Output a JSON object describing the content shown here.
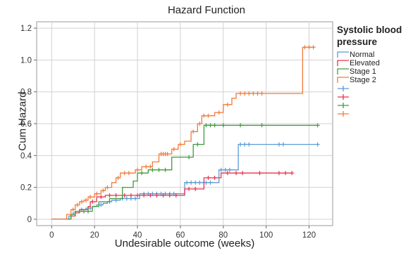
{
  "chart_data": {
    "type": "line",
    "title": "Hazard Function",
    "xlabel": "Undesirable outcome (weeks)",
    "ylabel": "Cum Hazard",
    "xlim": [
      -7,
      131
    ],
    "ylim": [
      -0.04,
      1.24
    ],
    "xticks": [
      0,
      20,
      40,
      60,
      80,
      100,
      120
    ],
    "yticks": [
      0,
      0.2,
      0.4,
      0.6,
      0.8,
      1.0,
      1.2
    ],
    "ytick_labels": [
      "0",
      "0.2",
      "0.4",
      "0.6",
      "0.8",
      "1.0",
      "1.2"
    ],
    "grid": true,
    "legend_title": "Systolic blood pressure",
    "legend_position": "right",
    "series": [
      {
        "name": "Normal",
        "color": "#5b9bd5",
        "step": [
          [
            0,
            0
          ],
          [
            7,
            0
          ],
          [
            8,
            0.02
          ],
          [
            9,
            0.03
          ],
          [
            10,
            0.04
          ],
          [
            11,
            0.05
          ],
          [
            13,
            0.06
          ],
          [
            16,
            0.07
          ],
          [
            19,
            0.08
          ],
          [
            21,
            0.09
          ],
          [
            24,
            0.1
          ],
          [
            26,
            0.11
          ],
          [
            28,
            0.12
          ],
          [
            32,
            0.13
          ],
          [
            41,
            0.16
          ],
          [
            59,
            0.16
          ],
          [
            62,
            0.23
          ],
          [
            76,
            0.23
          ],
          [
            78,
            0.31
          ],
          [
            85,
            0.31
          ],
          [
            87,
            0.47
          ],
          [
            124,
            0.47
          ]
        ],
        "censored": [
          [
            14,
            0.06
          ],
          [
            18,
            0.07
          ],
          [
            23,
            0.09
          ],
          [
            27,
            0.11
          ],
          [
            30,
            0.12
          ],
          [
            33,
            0.13
          ],
          [
            35,
            0.13
          ],
          [
            37,
            0.13
          ],
          [
            39,
            0.13
          ],
          [
            43,
            0.16
          ],
          [
            45,
            0.16
          ],
          [
            47,
            0.16
          ],
          [
            49,
            0.16
          ],
          [
            51,
            0.16
          ],
          [
            53,
            0.16
          ],
          [
            55,
            0.16
          ],
          [
            57,
            0.16
          ],
          [
            63,
            0.23
          ],
          [
            65,
            0.23
          ],
          [
            67,
            0.23
          ],
          [
            69,
            0.23
          ],
          [
            71,
            0.23
          ],
          [
            72,
            0.23
          ],
          [
            74,
            0.23
          ],
          [
            79,
            0.31
          ],
          [
            81,
            0.31
          ],
          [
            83,
            0.31
          ],
          [
            88,
            0.47
          ],
          [
            90,
            0.47
          ],
          [
            92,
            0.47
          ],
          [
            106,
            0.47
          ],
          [
            108,
            0.47
          ],
          [
            124,
            0.47
          ]
        ]
      },
      {
        "name": "Elevated",
        "color": "#e8344e",
        "step": [
          [
            0,
            0
          ],
          [
            7,
            0
          ],
          [
            9,
            0.02
          ],
          [
            11,
            0.04
          ],
          [
            13,
            0.06
          ],
          [
            17,
            0.08
          ],
          [
            18,
            0.11
          ],
          [
            21,
            0.14
          ],
          [
            25,
            0.15
          ],
          [
            61,
            0.15
          ],
          [
            62,
            0.19
          ],
          [
            70,
            0.19
          ],
          [
            71,
            0.26
          ],
          [
            78,
            0.26
          ],
          [
            79,
            0.29
          ],
          [
            112,
            0.29
          ]
        ],
        "censored": [
          [
            19,
            0.11
          ],
          [
            23,
            0.14
          ],
          [
            27,
            0.15
          ],
          [
            30,
            0.15
          ],
          [
            34,
            0.15
          ],
          [
            37,
            0.15
          ],
          [
            40,
            0.15
          ],
          [
            43,
            0.15
          ],
          [
            46,
            0.15
          ],
          [
            49,
            0.15
          ],
          [
            52,
            0.15
          ],
          [
            55,
            0.15
          ],
          [
            58,
            0.15
          ],
          [
            64,
            0.19
          ],
          [
            67,
            0.19
          ],
          [
            73,
            0.26
          ],
          [
            76,
            0.26
          ],
          [
            82,
            0.29
          ],
          [
            86,
            0.29
          ],
          [
            89,
            0.29
          ],
          [
            97,
            0.29
          ],
          [
            106,
            0.29
          ],
          [
            109,
            0.29
          ],
          [
            112,
            0.29
          ]
        ]
      },
      {
        "name": "Stage 1",
        "color": "#3f9c3f",
        "step": [
          [
            0,
            0
          ],
          [
            7,
            0
          ],
          [
            9,
            0.03
          ],
          [
            11,
            0.05
          ],
          [
            18,
            0.05
          ],
          [
            19,
            0.08
          ],
          [
            22,
            0.11
          ],
          [
            27,
            0.13
          ],
          [
            33,
            0.2
          ],
          [
            38,
            0.24
          ],
          [
            40,
            0.29
          ],
          [
            45,
            0.31
          ],
          [
            54,
            0.31
          ],
          [
            56,
            0.39
          ],
          [
            63,
            0.39
          ],
          [
            66,
            0.47
          ],
          [
            69,
            0.47
          ],
          [
            71,
            0.59
          ],
          [
            124,
            0.59
          ]
        ],
        "censored": [
          [
            13,
            0.05
          ],
          [
            15,
            0.05
          ],
          [
            17,
            0.05
          ],
          [
            42,
            0.29
          ],
          [
            47,
            0.31
          ],
          [
            50,
            0.31
          ],
          [
            53,
            0.31
          ],
          [
            64,
            0.39
          ],
          [
            68,
            0.47
          ],
          [
            72,
            0.59
          ],
          [
            74,
            0.59
          ],
          [
            76,
            0.59
          ],
          [
            80,
            0.59
          ],
          [
            88,
            0.59
          ],
          [
            98,
            0.59
          ],
          [
            124,
            0.59
          ]
        ]
      },
      {
        "name": "Stage 2",
        "color": "#f27b3a",
        "step": [
          [
            0,
            0
          ],
          [
            6,
            0
          ],
          [
            7,
            0.03
          ],
          [
            9,
            0.06
          ],
          [
            11,
            0.09
          ],
          [
            13,
            0.11
          ],
          [
            15,
            0.12
          ],
          [
            17,
            0.14
          ],
          [
            20,
            0.16
          ],
          [
            23,
            0.18
          ],
          [
            25,
            0.2
          ],
          [
            28,
            0.23
          ],
          [
            30,
            0.26
          ],
          [
            32,
            0.29
          ],
          [
            37,
            0.29
          ],
          [
            39,
            0.31
          ],
          [
            42,
            0.33
          ],
          [
            47,
            0.36
          ],
          [
            50,
            0.41
          ],
          [
            56,
            0.44
          ],
          [
            59,
            0.47
          ],
          [
            62,
            0.49
          ],
          [
            65,
            0.55
          ],
          [
            68,
            0.6
          ],
          [
            70,
            0.65
          ],
          [
            76,
            0.67
          ],
          [
            80,
            0.72
          ],
          [
            84,
            0.76
          ],
          [
            86,
            0.79
          ],
          [
            115,
            0.79
          ],
          [
            117,
            1.08
          ],
          [
            122,
            1.08
          ]
        ],
        "censored": [
          [
            10,
            0.06
          ],
          [
            12,
            0.09
          ],
          [
            14,
            0.11
          ],
          [
            16,
            0.12
          ],
          [
            18,
            0.14
          ],
          [
            21,
            0.16
          ],
          [
            24,
            0.18
          ],
          [
            26,
            0.2
          ],
          [
            31,
            0.26
          ],
          [
            34,
            0.29
          ],
          [
            36,
            0.29
          ],
          [
            40,
            0.31
          ],
          [
            44,
            0.33
          ],
          [
            46,
            0.33
          ],
          [
            51,
            0.41
          ],
          [
            52,
            0.41
          ],
          [
            53,
            0.41
          ],
          [
            54,
            0.41
          ],
          [
            57,
            0.44
          ],
          [
            60,
            0.47
          ],
          [
            66,
            0.55
          ],
          [
            69,
            0.6
          ],
          [
            71,
            0.65
          ],
          [
            73,
            0.65
          ],
          [
            78,
            0.67
          ],
          [
            82,
            0.72
          ],
          [
            88,
            0.79
          ],
          [
            90,
            0.79
          ],
          [
            92,
            0.79
          ],
          [
            94,
            0.79
          ],
          [
            96,
            0.79
          ],
          [
            98,
            0.79
          ],
          [
            118,
            1.08
          ],
          [
            120,
            1.08
          ],
          [
            122,
            1.08
          ]
        ]
      }
    ],
    "legend_marker_colors": [
      "#5b9bd5",
      "#e8344e",
      "#3f9c3f",
      "#f27b3a"
    ]
  }
}
